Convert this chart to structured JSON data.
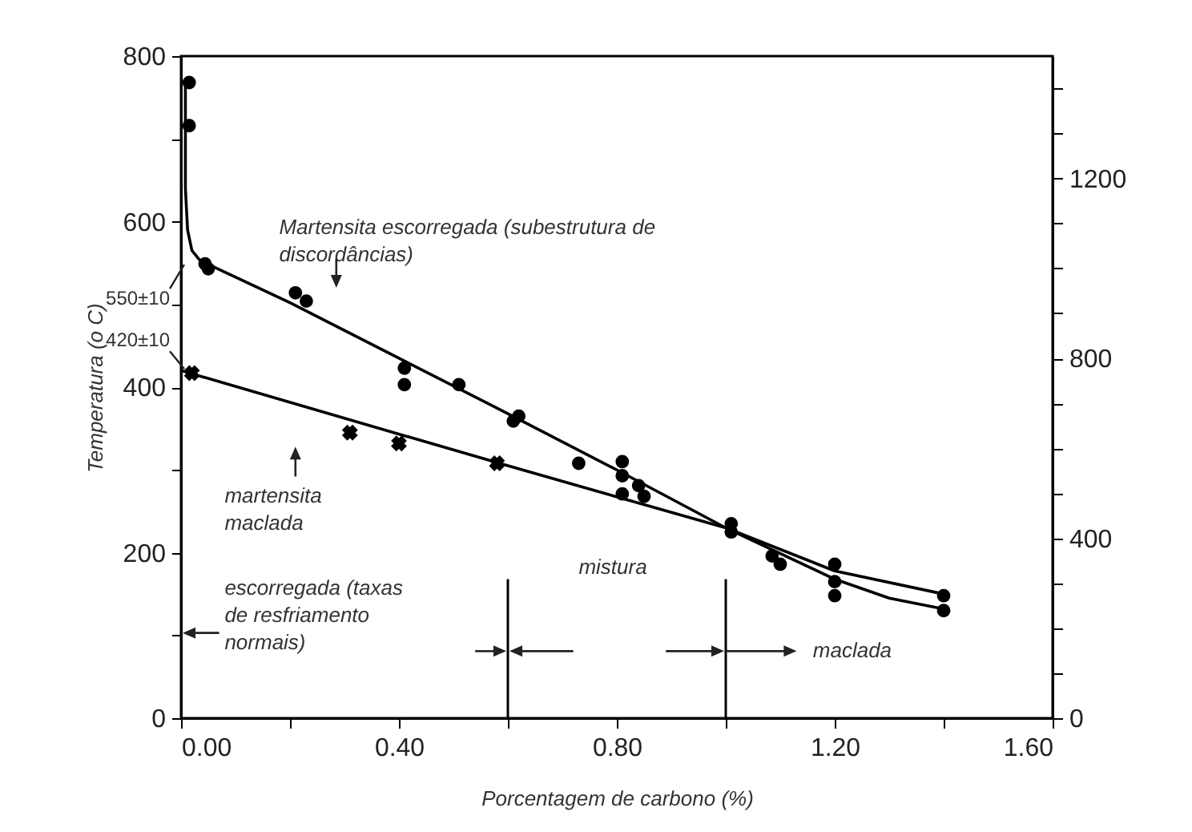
{
  "chart_data": {
    "type": "scatter",
    "xlabel": "Porcentagem de carbono (%)",
    "ylabel": "Temperatura (o C)",
    "xlim": [
      0,
      1.6
    ],
    "ylim": [
      0,
      800
    ],
    "y2lim": [
      0,
      1472
    ],
    "xticks": [
      {
        "value": 0,
        "label": "0.00"
      },
      {
        "value": 0.2,
        "label": null
      },
      {
        "value": 0.4,
        "label": "0.40"
      },
      {
        "value": 0.6,
        "label": null
      },
      {
        "value": 0.8,
        "label": "0.80"
      },
      {
        "value": 1.0,
        "label": null
      },
      {
        "value": 1.2,
        "label": "1.20"
      },
      {
        "value": 1.4,
        "label": null
      },
      {
        "value": 1.6,
        "label": "1.60"
      }
    ],
    "yticks": [
      0,
      {
        "value": 100,
        "label": null
      },
      200,
      {
        "value": 300,
        "label": null
      },
      400,
      {
        "value": 500,
        "label": null
      },
      600,
      {
        "value": 700,
        "label": null
      },
      800
    ],
    "y2ticks": [
      0,
      {
        "value": 100,
        "label": null
      },
      {
        "value": 200,
        "label": null
      },
      {
        "value": 300,
        "label": null
      },
      400,
      {
        "value": 500,
        "label": null
      },
      {
        "value": 600,
        "label": null
      },
      {
        "value": 700,
        "label": null
      },
      800,
      {
        "value": 900,
        "label": null
      },
      {
        "value": 1000,
        "label": null
      },
      {
        "value": 1100,
        "label": null
      },
      1200,
      {
        "value": 1300,
        "label": null
      },
      {
        "value": 1400,
        "label": null
      }
    ],
    "grid": false,
    "series": [
      {
        "marker": "circle",
        "color": "#000000",
        "x": [
          0.015,
          0.015,
          0.044,
          0.05,
          0.21,
          0.23,
          0.41,
          0.41,
          0.51,
          0.62,
          0.61,
          0.73,
          0.81,
          0.81,
          0.81,
          0.84,
          0.85,
          1.01,
          1.01,
          1.085,
          1.1,
          1.2,
          1.2,
          1.2,
          1.4,
          1.4
        ],
        "values": [
          768,
          716,
          549,
          543,
          514,
          504,
          423,
          403,
          403,
          365,
          359,
          308,
          310,
          293,
          271,
          281,
          268,
          235,
          225,
          196,
          186,
          186,
          165,
          148,
          148,
          130
        ]
      },
      {
        "marker": "cross",
        "color": "#000000",
        "x": [
          0.02,
          0.31,
          0.4,
          0.58
        ],
        "values": [
          417,
          345,
          332,
          308
        ]
      },
      {
        "type": "line",
        "marker": "none",
        "color": "#000000",
        "x": [
          0.008,
          0.008,
          0.012,
          0.02,
          0.035,
          0.2,
          0.4,
          0.6,
          0.8,
          1.0,
          1.2,
          1.4
        ],
        "values": [
          770,
          640,
          590,
          565,
          553,
          502,
          435,
          368,
          300,
          230,
          178,
          150
        ]
      },
      {
        "type": "line",
        "marker": "none",
        "color": "#000000",
        "x": [
          0.0,
          0.6,
          1.0,
          1.2,
          1.3,
          1.4
        ],
        "values": [
          420,
          305,
          230,
          168,
          145,
          132
        ]
      }
    ],
    "ref_lines": [
      {
        "axis": "x",
        "value": 0.6,
        "color": "#000000"
      },
      {
        "axis": "x",
        "value": 1.0,
        "color": "#000000"
      }
    ],
    "annotations": [
      "Martensita escorregada (subestrutura de\ndiscordâncias)",
      "martensita\nmaclada",
      "550±10",
      "420±10",
      "escorregada (taxas\nde resfriamento\nnormais)",
      "mistura",
      {
        "text": "maclada",
        "x": 1.0,
        "y": 81
      }
    ]
  }
}
